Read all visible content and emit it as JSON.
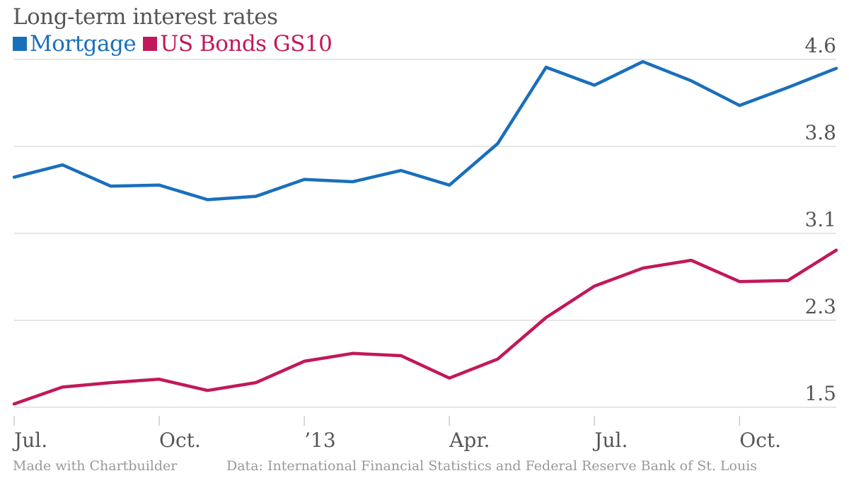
{
  "colors": {
    "mortgage": "#1a6fbc",
    "bonds": "#c2185b",
    "grid": "#dddddd",
    "tick_text": "#555555",
    "footer_text": "#999999"
  },
  "footer": {
    "credit": "Made with Chartbuilder",
    "source": "Data: International Financial Statistics and Federal Reserve Bank of St. Louis"
  },
  "chart_data": {
    "type": "line",
    "title": "Long-term interest rates",
    "x": [
      "2012-07",
      "2012-08",
      "2012-09",
      "2012-10",
      "2012-11",
      "2012-12",
      "2013-01",
      "2013-02",
      "2013-03",
      "2013-04",
      "2013-05",
      "2013-06",
      "2013-07",
      "2013-08",
      "2013-09",
      "2013-10",
      "2013-11",
      "2013-12"
    ],
    "x_ticks": [
      "Jul.",
      "Oct.",
      "’13",
      "Apr.",
      "Jul.",
      "Oct."
    ],
    "x_tick_dates": [
      "2012-07",
      "2012-10",
      "2013-01",
      "2013-04",
      "2013-07",
      "2013-10"
    ],
    "y_ticks": [
      "4.6",
      "3.8",
      "3.1",
      "2.3",
      "1.5"
    ],
    "ylim": [
      1.5,
      4.6
    ],
    "grid": "horizontal",
    "legend_position": "top-left",
    "series": [
      {
        "name": "Mortgage",
        "color_key": "mortgage",
        "values": [
          3.55,
          3.66,
          3.47,
          3.48,
          3.35,
          3.38,
          3.53,
          3.51,
          3.61,
          3.48,
          3.85,
          4.53,
          4.37,
          4.58,
          4.41,
          4.19,
          4.35,
          4.52
        ]
      },
      {
        "name": "US Bonds GS10",
        "color_key": "bonds",
        "values": [
          1.53,
          1.68,
          1.72,
          1.75,
          1.65,
          1.72,
          1.91,
          1.98,
          1.96,
          1.76,
          1.93,
          2.3,
          2.58,
          2.74,
          2.81,
          2.62,
          2.63,
          2.9
        ]
      }
    ]
  }
}
